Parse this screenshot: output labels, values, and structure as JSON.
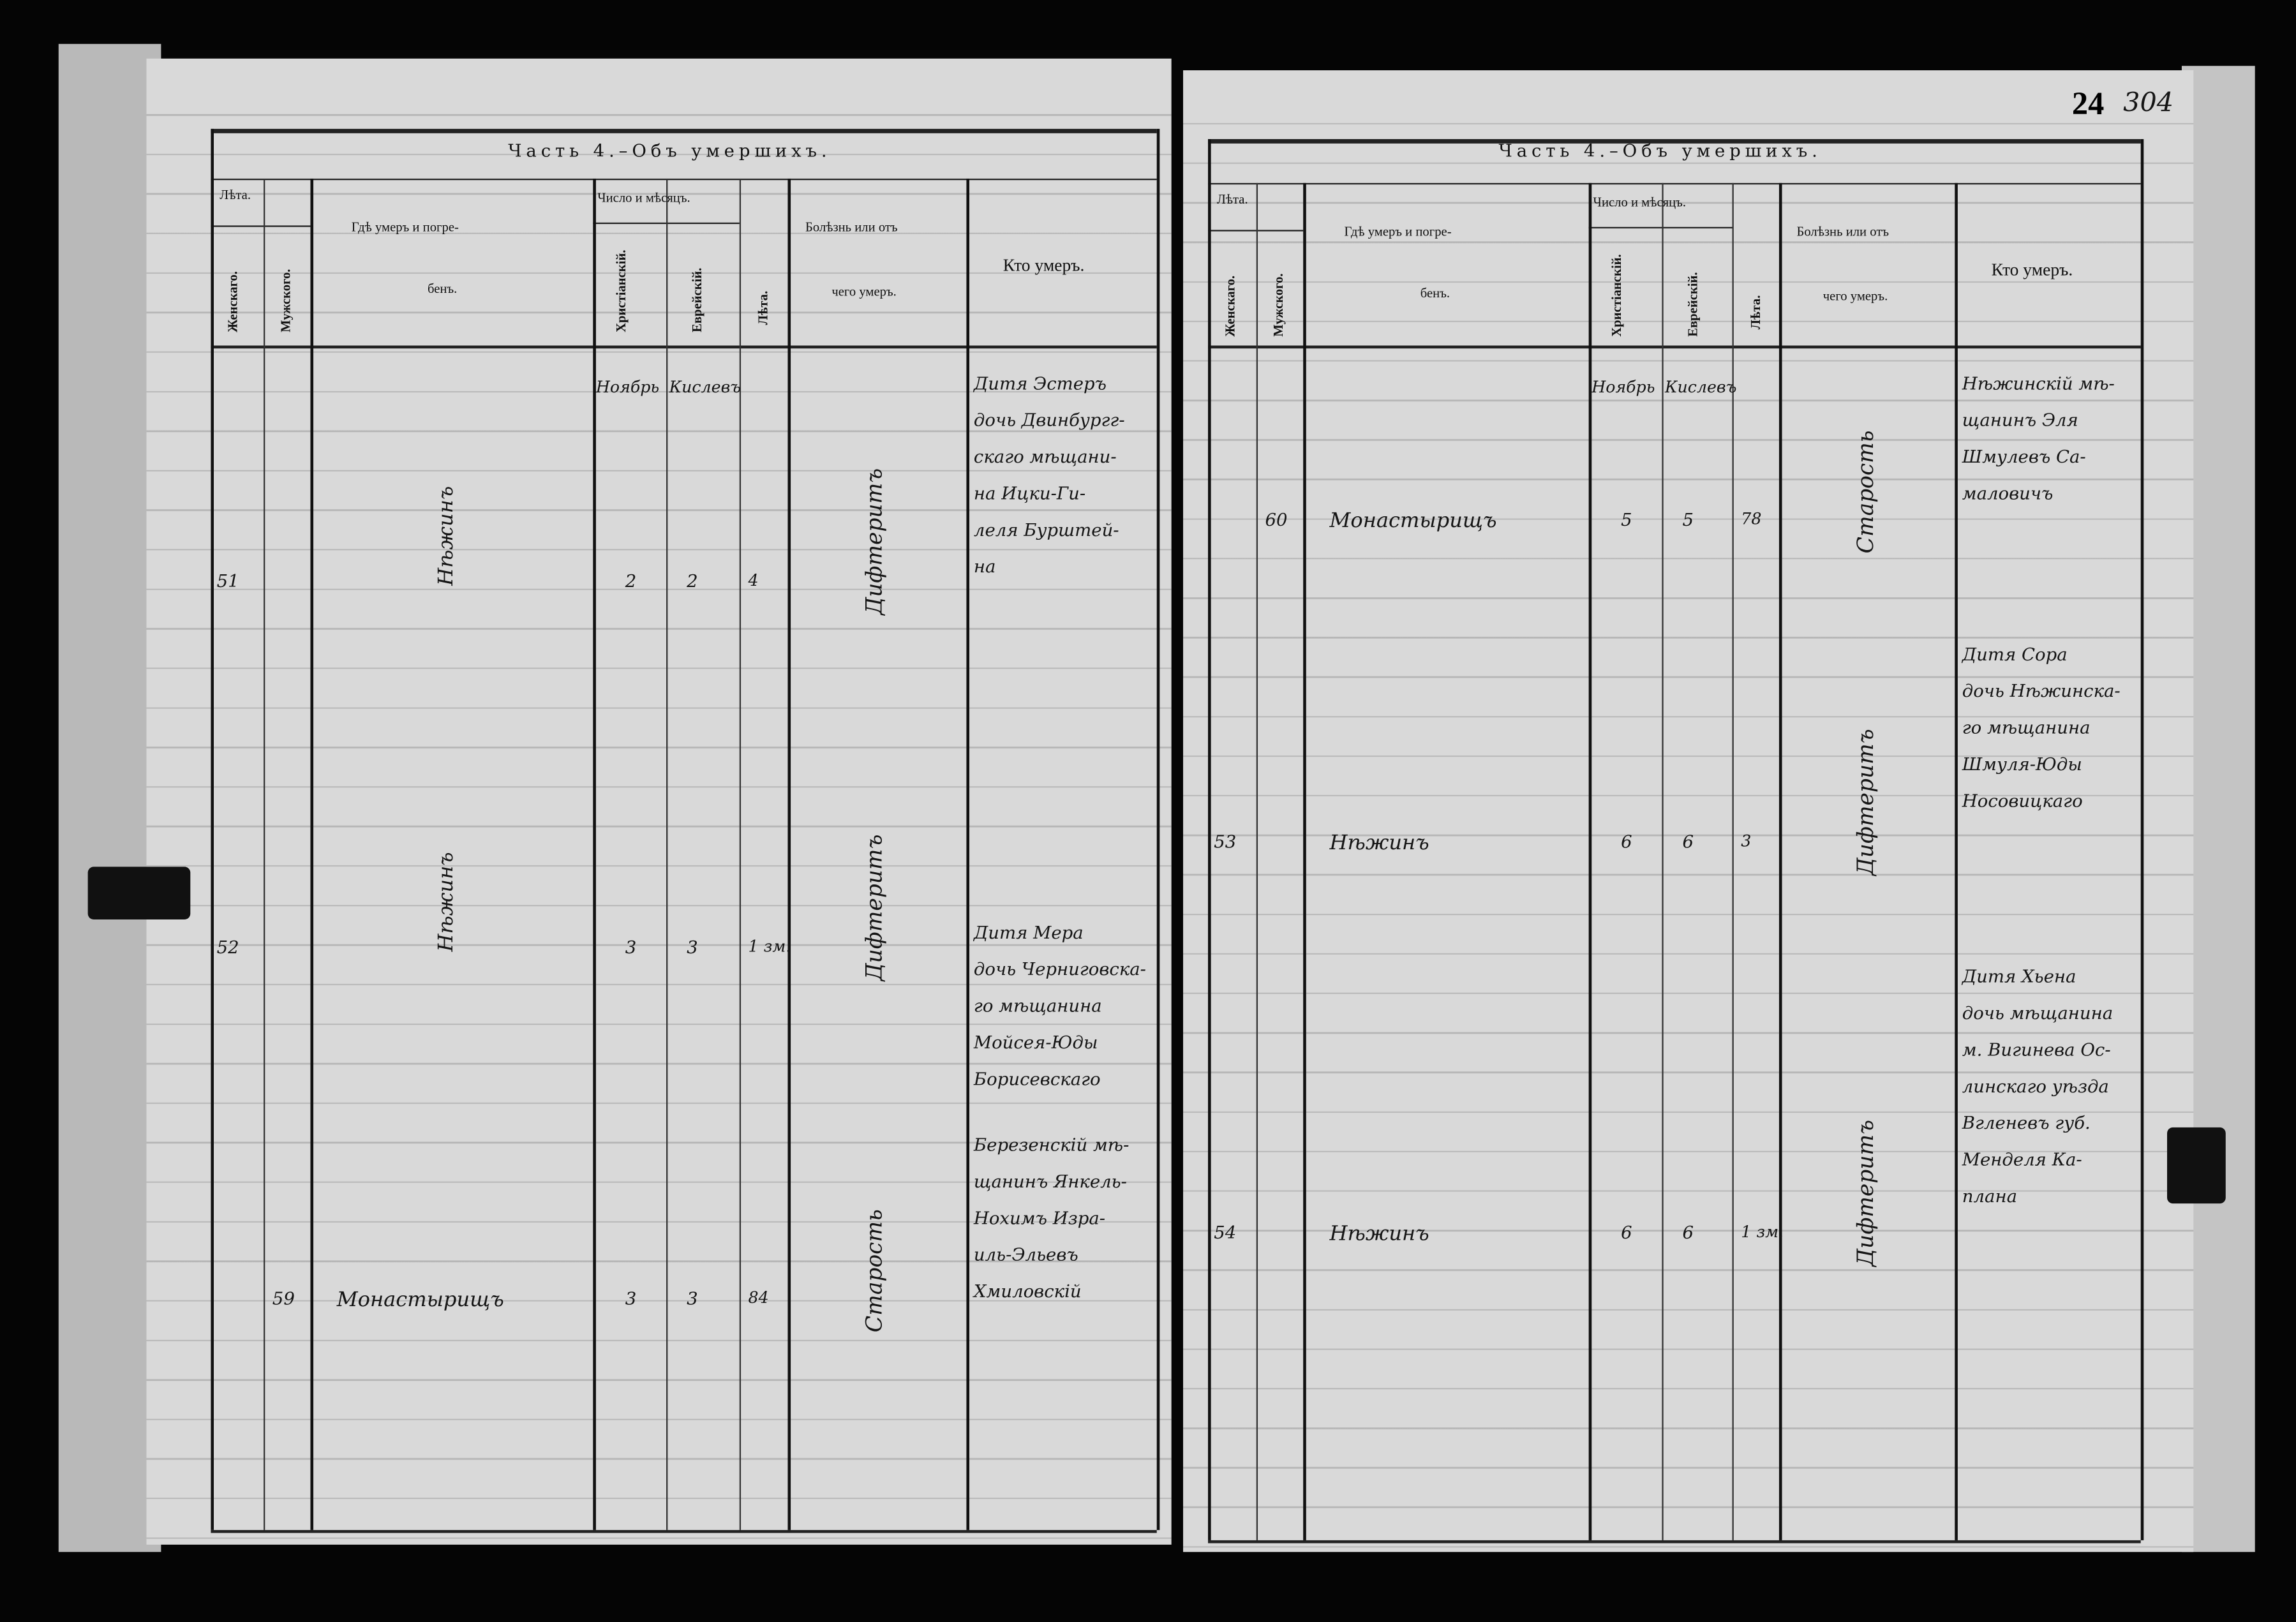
{
  "pages": [
    {
      "title": "Часть 4.–Объ умершихъ.",
      "headers": {
        "years": "Лѣта.",
        "female": "Женскаго.",
        "male": "Мужского.",
        "place_1": "Гдѣ умеръ и погре-",
        "place_2": "бенъ.",
        "date": "Число и мѣсяцъ.",
        "christian": "Христіанскій.",
        "jewish": "Еврейскій.",
        "age": "Лѣта.",
        "disease_1": "Болѣзнь или отъ",
        "disease_2": "чего умеръ.",
        "who": "Кто умеръ."
      },
      "months": {
        "christian": "Ноябрь",
        "jewish": "Кислевъ"
      },
      "entries": [
        {
          "female_no": "51",
          "male_no": "",
          "place": "Нѣжинъ",
          "christian_day": "2",
          "jewish_day": "2",
          "age": "4",
          "disease": "Дифтеритъ",
          "who": [
            "Дитя Эстеръ",
            "дочь Двинбургг-",
            "скаго мѣщани-",
            "на Ицки-Ги-",
            "леля Бурштей-",
            "на"
          ]
        },
        {
          "female_no": "52",
          "male_no": "",
          "place": "Нѣжинъ",
          "christian_day": "3",
          "jewish_day": "3",
          "age": "1 зм.",
          "disease": "Дифтеритъ",
          "who": [
            "Дитя Мера",
            "дочь Черниговска-",
            "го мѣщанина",
            "Мойсея-Юды",
            "Борисевскаго"
          ]
        },
        {
          "female_no": "",
          "male_no": "59",
          "place": "Монастырищъ",
          "christian_day": "3",
          "jewish_day": "3",
          "age": "84",
          "disease": "Старость",
          "who": [
            "Березенскій мѣ-",
            "щанинъ Янкель-",
            "Нохимъ Изра-",
            "иль-Эльевъ",
            "Хмиловскій"
          ]
        }
      ]
    },
    {
      "title": "Часть 4.–Объ умершихъ.",
      "page_number": "24",
      "archive_number": "304",
      "headers": {
        "years": "Лѣта.",
        "female": "Женскаго.",
        "male": "Мужского.",
        "place_1": "Гдѣ умеръ и погре-",
        "place_2": "бенъ.",
        "date": "Число и мѣсяцъ.",
        "christian": "Христіанскій.",
        "jewish": "Еврейскій.",
        "age": "Лѣта.",
        "disease_1": "Болѣзнь или отъ",
        "disease_2": "чего умеръ.",
        "who": "Кто умеръ."
      },
      "months": {
        "christian": "Ноябрь",
        "jewish": "Кислевъ"
      },
      "entries": [
        {
          "female_no": "",
          "male_no": "60",
          "place": "Монастырищъ",
          "christian_day": "5",
          "jewish_day": "5",
          "age": "78",
          "disease": "Старость",
          "who": [
            "Нѣжинскій мѣ-",
            "щанинъ Эля",
            "Шмулевъ Са-",
            "маловичъ"
          ]
        },
        {
          "female_no": "53",
          "male_no": "",
          "place": "Нѣжинъ",
          "christian_day": "6",
          "jewish_day": "6",
          "age": "3",
          "disease": "Дифтеритъ",
          "who": [
            "Дитя Сора",
            "дочь Нѣжинска-",
            "го мѣщанина",
            "Шмуля-Юды",
            "Носовицкаго"
          ]
        },
        {
          "female_no": "54",
          "male_no": "",
          "place": "Нѣжинъ",
          "christian_day": "6",
          "jewish_day": "6",
          "age": "1 зм.",
          "disease": "Дифтеритъ",
          "who": [
            "Дитя Хьена",
            "дочь мѣщанина",
            "м. Вигинева Ос-",
            "линскаго уѣзда",
            "Вгленевъ губ.",
            "Менделя Ка-",
            "плана"
          ]
        }
      ]
    }
  ],
  "colors": {
    "paper": "#d9d9d9",
    "ink": "#111111",
    "background": "#050505"
  }
}
